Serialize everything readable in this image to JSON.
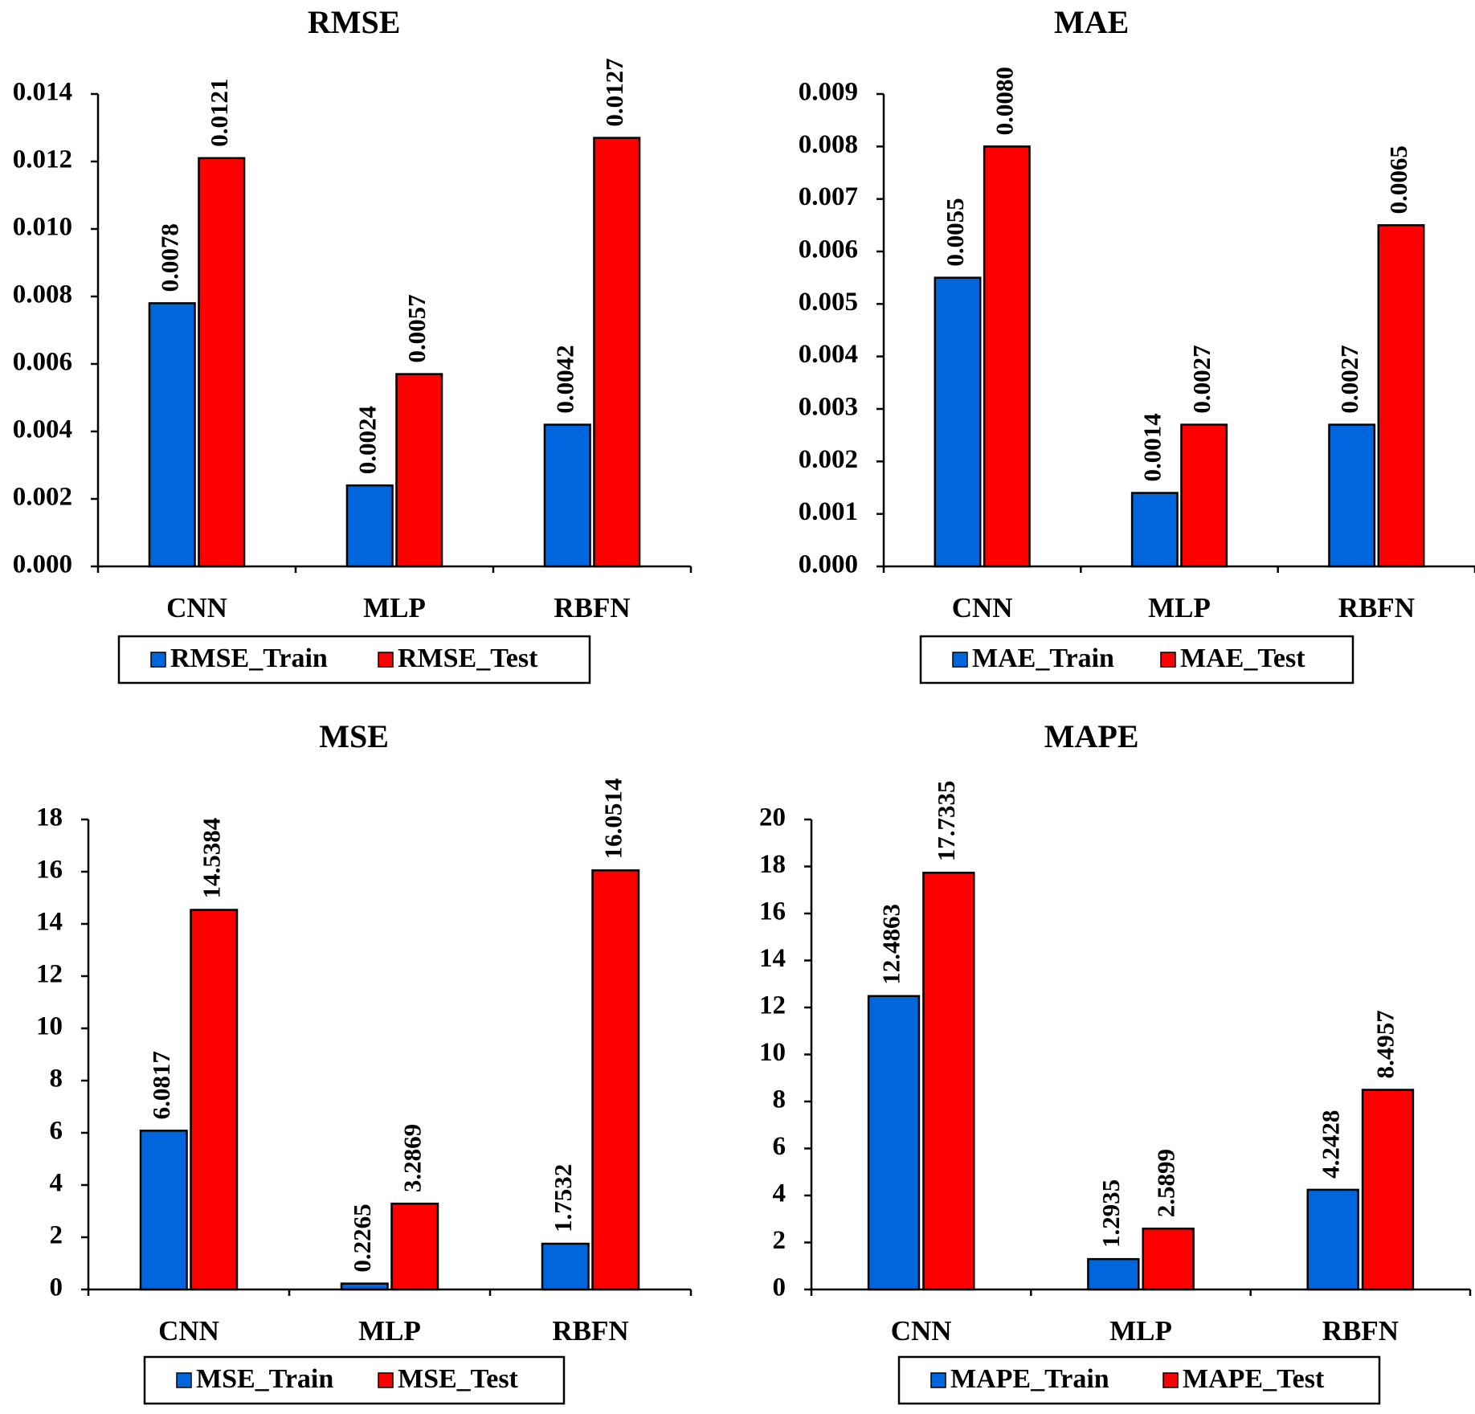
{
  "colors": {
    "train": "#0066DD",
    "test": "#FF0000",
    "axis": "#000000"
  },
  "chart_data": [
    {
      "type": "bar",
      "title": "RMSE",
      "categories": [
        "CNN",
        "MLP",
        "RBFN"
      ],
      "series": [
        {
          "name": "RMSE_Train",
          "values": [
            0.0078,
            0.0024,
            0.0042
          ],
          "labels": [
            "0.0078",
            "0.0024",
            "0.0042"
          ]
        },
        {
          "name": "RMSE_Test",
          "values": [
            0.0121,
            0.0057,
            0.0127
          ],
          "labels": [
            "0.0121",
            "0.0057",
            "0.0127"
          ]
        }
      ],
      "ylim": [
        0,
        0.014
      ],
      "yticks": [
        0,
        0.002,
        0.004,
        0.006,
        0.008,
        0.01,
        0.012,
        0.014
      ],
      "ytick_labels": [
        "0.000",
        "0.002",
        "0.004",
        "0.006",
        "0.008",
        "0.010",
        "0.012",
        "0.014"
      ],
      "xlabel": "",
      "ylabel": "",
      "legend": "bottom"
    },
    {
      "type": "bar",
      "title": "MAE",
      "categories": [
        "CNN",
        "MLP",
        "RBFN"
      ],
      "series": [
        {
          "name": "MAE_Train",
          "values": [
            0.0055,
            0.0014,
            0.0027
          ],
          "labels": [
            "0.0055",
            "0.0014",
            "0.0027"
          ]
        },
        {
          "name": "MAE_Test",
          "values": [
            0.008,
            0.0027,
            0.0065
          ],
          "labels": [
            "0.0080",
            "0.0027",
            "0.0065"
          ]
        }
      ],
      "ylim": [
        0,
        0.009
      ],
      "yticks": [
        0,
        0.001,
        0.002,
        0.003,
        0.004,
        0.005,
        0.006,
        0.007,
        0.008,
        0.009
      ],
      "ytick_labels": [
        "0.000",
        "0.001",
        "0.002",
        "0.003",
        "0.004",
        "0.005",
        "0.006",
        "0.007",
        "0.008",
        "0.009"
      ],
      "xlabel": "",
      "ylabel": "",
      "legend": "bottom"
    },
    {
      "type": "bar",
      "title": "MSE",
      "categories": [
        "CNN",
        "MLP",
        "RBFN"
      ],
      "series": [
        {
          "name": "MSE_Train",
          "values": [
            6.0817,
            0.2265,
            1.7532
          ],
          "labels": [
            "6.0817",
            "0.2265",
            "1.7532"
          ]
        },
        {
          "name": "MSE_Test",
          "values": [
            14.5384,
            3.2869,
            16.0514
          ],
          "labels": [
            "14.5384",
            "3.2869",
            "16.0514"
          ]
        }
      ],
      "ylim": [
        0,
        18
      ],
      "yticks": [
        0,
        2,
        4,
        6,
        8,
        10,
        12,
        14,
        16,
        18
      ],
      "ytick_labels": [
        "0",
        "2",
        "4",
        "6",
        "8",
        "10",
        "12",
        "14",
        "16",
        "18"
      ],
      "xlabel": "",
      "ylabel": "",
      "legend": "bottom"
    },
    {
      "type": "bar",
      "title": "MAPE",
      "categories": [
        "CNN",
        "MLP",
        "RBFN"
      ],
      "series": [
        {
          "name": "MAPE_Train",
          "values": [
            12.4863,
            1.2935,
            4.2428
          ],
          "labels": [
            "12.4863",
            "1.2935",
            "4.2428"
          ]
        },
        {
          "name": "MAPE_Test",
          "values": [
            17.7335,
            2.5899,
            8.4957
          ],
          "labels": [
            "17.7335",
            "2.5899",
            "8.4957"
          ]
        }
      ],
      "ylim": [
        0,
        20
      ],
      "yticks": [
        0,
        2,
        4,
        6,
        8,
        10,
        12,
        14,
        16,
        18,
        20
      ],
      "ytick_labels": [
        "0",
        "2",
        "4",
        "6",
        "8",
        "10",
        "12",
        "14",
        "16",
        "18",
        "20"
      ],
      "xlabel": "",
      "ylabel": "",
      "legend": "bottom"
    }
  ]
}
